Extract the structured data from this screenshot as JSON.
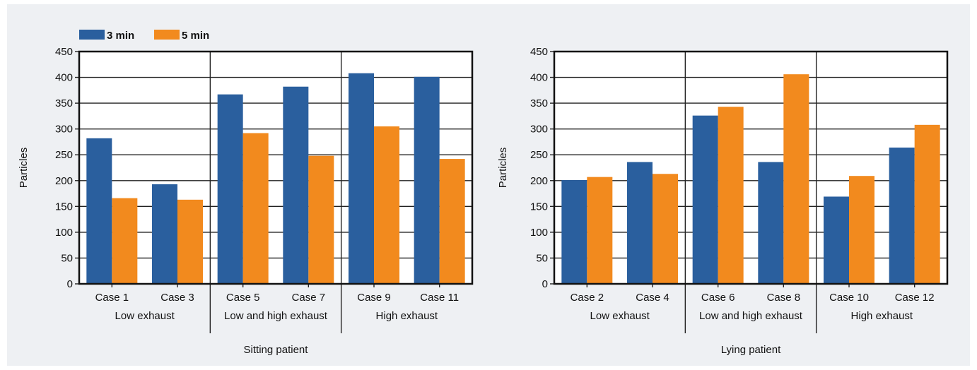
{
  "colors": {
    "series_3min": "#2a5f9e",
    "series_5min": "#f28a1e"
  },
  "chart_data": [
    {
      "type": "bar",
      "xlabel": "Sitting patient",
      "ylabel": "Particles",
      "ylim": [
        0,
        450
      ],
      "yticks": [
        0,
        50,
        100,
        150,
        200,
        250,
        300,
        350,
        400,
        450
      ],
      "grid": true,
      "legend": "top-left",
      "categories": [
        "Case 1",
        "Case 3",
        "Case 5",
        "Case 7",
        "Case 9",
        "Case 11"
      ],
      "groups": [
        {
          "label": "Low exhaust",
          "categories": [
            "Case 1",
            "Case 3"
          ]
        },
        {
          "label": "Low and high exhaust",
          "categories": [
            "Case 5",
            "Case 7"
          ]
        },
        {
          "label": "High exhaust",
          "categories": [
            "Case 9",
            "Case 11"
          ]
        }
      ],
      "series": [
        {
          "name": "3 min",
          "values": [
            282,
            193,
            367,
            382,
            408,
            401
          ]
        },
        {
          "name": "5 min",
          "values": [
            166,
            163,
            292,
            248,
            305,
            242
          ]
        }
      ]
    },
    {
      "type": "bar",
      "xlabel": "Lying patient",
      "ylabel": "Particles",
      "ylim": [
        0,
        450
      ],
      "yticks": [
        0,
        50,
        100,
        150,
        200,
        250,
        300,
        350,
        400,
        450
      ],
      "grid": true,
      "categories": [
        "Case 2",
        "Case 4",
        "Case 6",
        "Case 8",
        "Case 10",
        "Case 12"
      ],
      "groups": [
        {
          "label": "Low exhaust",
          "categories": [
            "Case 2",
            "Case 4"
          ]
        },
        {
          "label": "Low and high exhaust",
          "categories": [
            "Case 6",
            "Case 8"
          ]
        },
        {
          "label": "High exhaust",
          "categories": [
            "Case 10",
            "Case 12"
          ]
        }
      ],
      "series": [
        {
          "name": "3 min",
          "values": [
            201,
            236,
            326,
            236,
            169,
            264
          ]
        },
        {
          "name": "5 min",
          "values": [
            207,
            213,
            343,
            406,
            209,
            308
          ]
        }
      ]
    }
  ]
}
